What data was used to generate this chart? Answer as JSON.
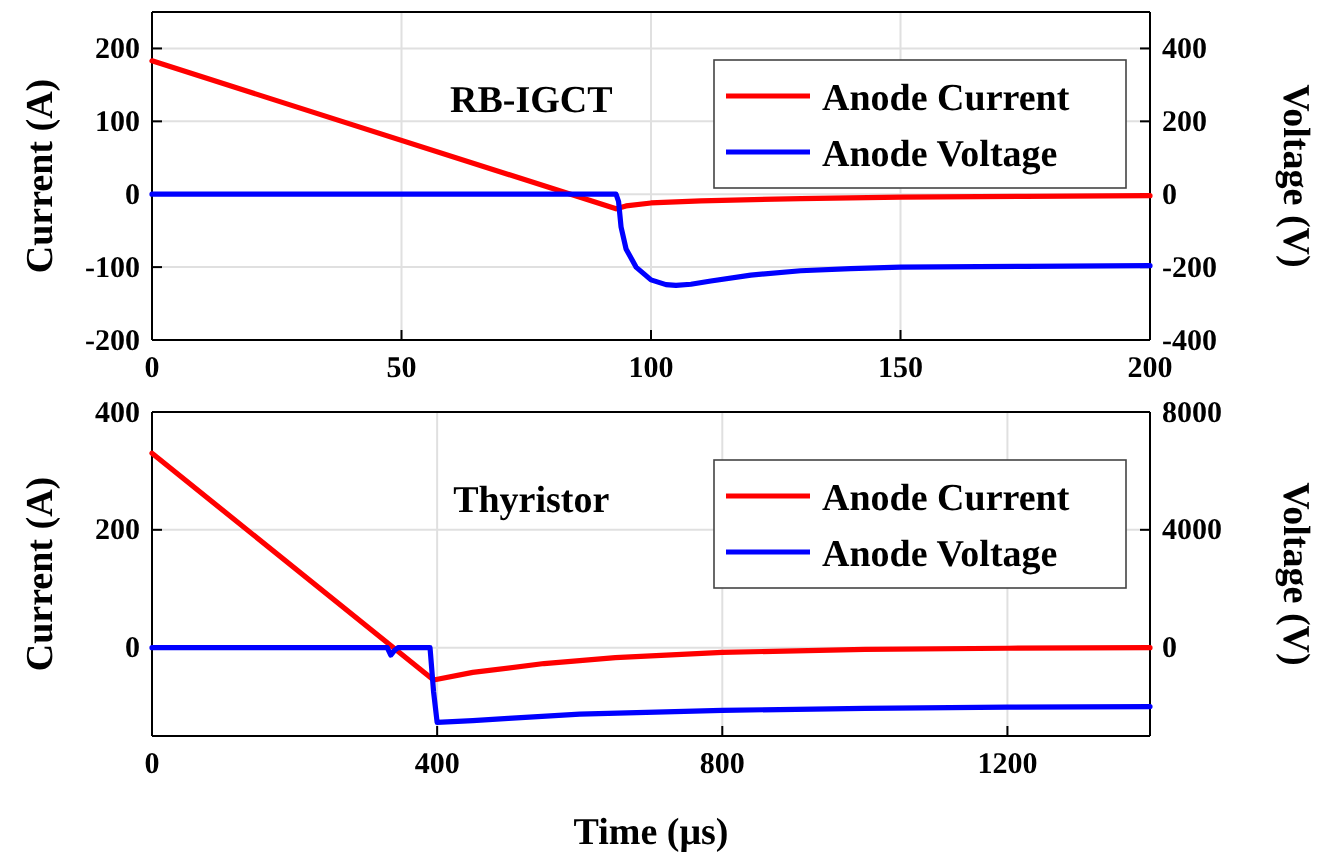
{
  "chart_data": [
    {
      "type": "line",
      "title": "RB-IGCT",
      "ylabel": "Current (A)",
      "y2label": "Voltage (V)",
      "xlim": [
        0,
        200
      ],
      "xticks": [
        0,
        50,
        100,
        150,
        200
      ],
      "ylim": [
        -200,
        250
      ],
      "yticks": [
        -200,
        -100,
        0,
        100,
        200
      ],
      "y2lim": [
        -400,
        500
      ],
      "y2ticks": [
        -400,
        -200,
        0,
        200,
        400
      ],
      "grid": true,
      "legend": "top right",
      "line_style": "solid",
      "series": [
        {
          "name": "Anode Current",
          "color": "#ff0000",
          "x": [
            0,
            93,
            95,
            100,
            110,
            130,
            150,
            175,
            200
          ],
          "values": [
            183,
            -20,
            -16,
            -12,
            -9,
            -6,
            -4,
            -3,
            -2
          ]
        },
        {
          "name": "Anode Voltage",
          "color": "#0000ff",
          "axis": "y2",
          "x": [
            0,
            93,
            93.5,
            94,
            95,
            97,
            100,
            103,
            105,
            108,
            112,
            120,
            130,
            140,
            150,
            175,
            200
          ],
          "values": [
            0,
            0,
            -20,
            -90,
            -150,
            -200,
            -235,
            -248,
            -250,
            -247,
            -238,
            -222,
            -210,
            -204,
            -200,
            -198,
            -196
          ]
        }
      ]
    },
    {
      "type": "line",
      "title": "Thyristor",
      "xlabel": "Time (μs)",
      "ylabel": "Current (A)",
      "y2label": "Voltage (V)",
      "xlim": [
        0,
        1400
      ],
      "xticks": [
        0,
        400,
        800,
        1200
      ],
      "ylim": [
        -150,
        400
      ],
      "yticks": [
        0,
        200,
        400
      ],
      "y2lim": [
        -3000,
        8000
      ],
      "y2ticks": [
        0,
        4000,
        8000
      ],
      "grid": true,
      "legend": "top right",
      "line_style": "solid",
      "series": [
        {
          "name": "Anode Current",
          "color": "#ff0000",
          "x": [
            0,
            395,
            450,
            550,
            650,
            800,
            1000,
            1200,
            1400
          ],
          "values": [
            330,
            -55,
            -42,
            -27,
            -17,
            -8,
            -3,
            -1,
            0
          ]
        },
        {
          "name": "Anode Voltage",
          "color": "#0000ff",
          "axis": "y2",
          "x": [
            0,
            330,
            335,
            340,
            345,
            390,
            395,
            400,
            450,
            500,
            600,
            800,
            1000,
            1200,
            1400
          ],
          "values": [
            0,
            0,
            -250,
            -100,
            0,
            0,
            -1500,
            -2540,
            -2480,
            -2400,
            -2260,
            -2130,
            -2060,
            -2020,
            -2000
          ]
        }
      ]
    }
  ]
}
